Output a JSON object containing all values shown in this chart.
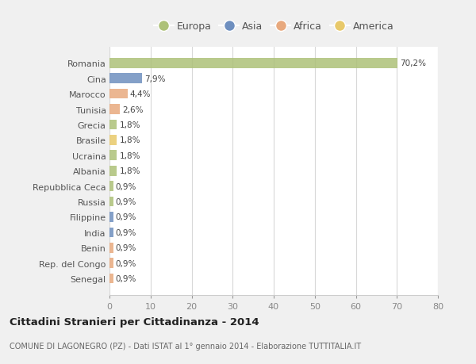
{
  "categories": [
    "Romania",
    "Cina",
    "Marocco",
    "Tunisia",
    "Grecia",
    "Brasile",
    "Ucraina",
    "Albania",
    "Repubblica Ceca",
    "Russia",
    "Filippine",
    "India",
    "Benin",
    "Rep. del Congo",
    "Senegal"
  ],
  "values": [
    70.2,
    7.9,
    4.4,
    2.6,
    1.8,
    1.8,
    1.8,
    1.8,
    0.9,
    0.9,
    0.9,
    0.9,
    0.9,
    0.9,
    0.9
  ],
  "colors": [
    "#adc178",
    "#6e8fbf",
    "#e8a97e",
    "#e8a97e",
    "#adc178",
    "#e8c96a",
    "#adc178",
    "#adc178",
    "#adc178",
    "#adc178",
    "#6e8fbf",
    "#6e8fbf",
    "#e8a97e",
    "#e8a97e",
    "#e8a97e"
  ],
  "labels": [
    "70,2%",
    "7,9%",
    "4,4%",
    "2,6%",
    "1,8%",
    "1,8%",
    "1,8%",
    "1,8%",
    "0,9%",
    "0,9%",
    "0,9%",
    "0,9%",
    "0,9%",
    "0,9%",
    "0,9%"
  ],
  "legend_labels": [
    "Europa",
    "Asia",
    "Africa",
    "America"
  ],
  "legend_colors": [
    "#adc178",
    "#6e8fbf",
    "#e8a97e",
    "#e8c96a"
  ],
  "xlim": [
    0,
    80
  ],
  "xticks": [
    0,
    10,
    20,
    30,
    40,
    50,
    60,
    70,
    80
  ],
  "title": "Cittadini Stranieri per Cittadinanza - 2014",
  "subtitle": "COMUNE DI LAGONEGRO (PZ) - Dati ISTAT al 1° gennaio 2014 - Elaborazione TUTTITALIA.IT",
  "bg_color": "#f0f0f0",
  "plot_bg_color": "#ffffff",
  "grid_color": "#d8d8d8",
  "text_color": "#555555",
  "label_color": "#444444"
}
